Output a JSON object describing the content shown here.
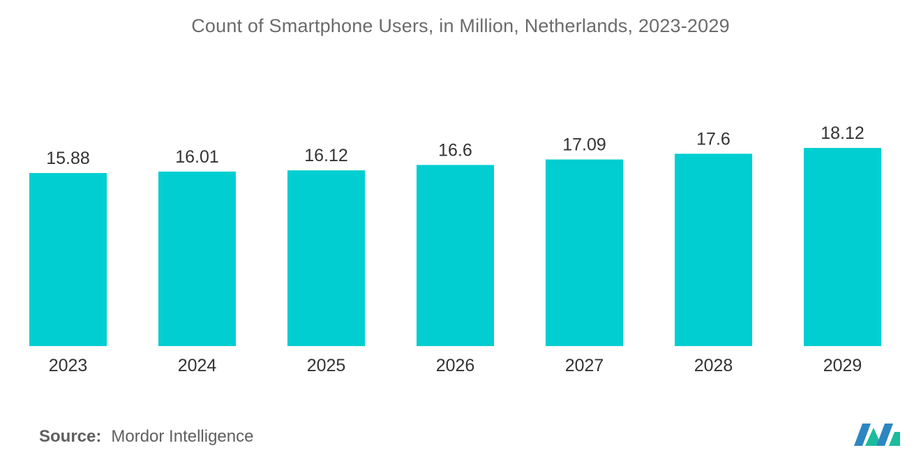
{
  "chart_data": {
    "type": "bar",
    "title": "Count of Smartphone Users, in Million, Netherlands, 2023-2029",
    "categories": [
      "2023",
      "2024",
      "2025",
      "2026",
      "2027",
      "2028",
      "2029"
    ],
    "values": [
      15.88,
      16.01,
      16.12,
      16.6,
      17.09,
      17.6,
      18.12
    ],
    "value_labels": [
      "15.88",
      "16.01",
      "16.12",
      "16.6",
      "17.09",
      "17.6",
      "18.12"
    ],
    "xlabel": "",
    "ylabel": "",
    "grid": false,
    "legend": "none",
    "bar_color": "#00CED1"
  },
  "source": {
    "label": "Source:",
    "value": "Mordor Intelligence"
  },
  "logo": {
    "name": "mordor-intelligence-logo",
    "colors": [
      "#2E86C1",
      "#1ABC9C"
    ]
  }
}
